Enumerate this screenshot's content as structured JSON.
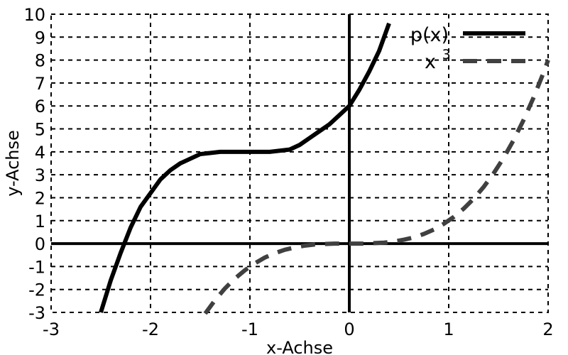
{
  "chart_data": {
    "type": "line",
    "xlabel": "x-Achse",
    "ylabel": "y-Achse",
    "xlim": [
      -3,
      2
    ],
    "ylim": [
      -3,
      10
    ],
    "x_ticks": [
      -3,
      -2,
      -1,
      0,
      1,
      2
    ],
    "y_ticks": [
      -3,
      -2,
      -1,
      0,
      1,
      2,
      3,
      4,
      5,
      6,
      7,
      8,
      9,
      10
    ],
    "x_tick_labels": [
      "-3",
      "-2",
      "-1",
      "0",
      "1",
      "2"
    ],
    "y_tick_labels": [
      "-3",
      "-2",
      "-1",
      "0",
      "1",
      "2",
      "3",
      "4",
      "5",
      "6",
      "7",
      "8",
      "9",
      "10"
    ],
    "grid": true,
    "legend_position": "top-right",
    "series": [
      {
        "name": "p(x)",
        "style": "solid",
        "color": "#000000",
        "x": [
          -2.5,
          -2.4,
          -2.3,
          -2.2,
          -2.1,
          -2.0,
          -1.9,
          -1.8,
          -1.7,
          -1.6,
          -1.5,
          -1.4,
          -1.3,
          -1.2,
          -1.1,
          -1.0,
          -0.9,
          -0.8,
          -0.7,
          -0.6,
          -0.5,
          -0.4,
          -0.3,
          -0.2,
          -0.1,
          0.0,
          0.1,
          0.2,
          0.3,
          0.4
        ],
        "y": [
          -3.0,
          -1.6,
          -0.4,
          0.7,
          1.6,
          2.2,
          2.8,
          3.2,
          3.5,
          3.7,
          3.9,
          3.95,
          4.0,
          4.0,
          4.0,
          4.0,
          4.0,
          4.0,
          4.05,
          4.1,
          4.3,
          4.6,
          4.9,
          5.2,
          5.6,
          6.0,
          6.7,
          7.5,
          8.4,
          9.6
        ]
      },
      {
        "name": "x³",
        "style": "dashed",
        "color": "#404040",
        "x": [
          -1.45,
          -1.35,
          -1.25,
          -1.15,
          -1.05,
          -0.95,
          -0.85,
          -0.75,
          -0.65,
          -0.55,
          -0.45,
          -0.35,
          -0.25,
          -0.15,
          -0.05,
          0.05,
          0.15,
          0.25,
          0.35,
          0.45,
          0.55,
          0.65,
          0.75,
          0.85,
          0.95,
          1.05,
          1.15,
          1.25,
          1.35,
          1.45,
          1.55,
          1.65,
          1.75,
          1.85,
          1.95,
          2.0
        ],
        "y": [
          -3.05,
          -2.46,
          -1.95,
          -1.52,
          -1.16,
          -0.86,
          -0.61,
          -0.42,
          -0.27,
          -0.17,
          -0.09,
          -0.04,
          -0.02,
          0.0,
          0.0,
          0.0,
          0.0,
          0.02,
          0.04,
          0.09,
          0.17,
          0.27,
          0.42,
          0.61,
          0.86,
          1.16,
          1.52,
          1.95,
          2.46,
          3.05,
          3.72,
          4.49,
          5.36,
          6.33,
          7.41,
          8.0
        ]
      }
    ],
    "legend": [
      {
        "label": "p(x)",
        "style": "solid"
      },
      {
        "label": "x",
        "superscript": "3",
        "style": "dashed"
      }
    ]
  }
}
